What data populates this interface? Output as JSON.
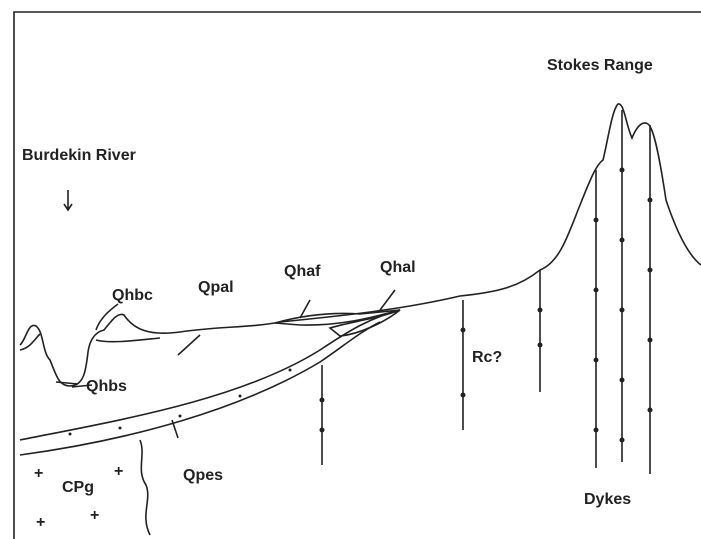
{
  "labels": [
    "Stokes Range",
    "Burdekin River",
    "Qhbc",
    "Qpal",
    "Qhaf",
    "Qhal",
    "Qhbs",
    "Rc?",
    "Qpes",
    "CPg",
    "Dykes"
  ]
}
